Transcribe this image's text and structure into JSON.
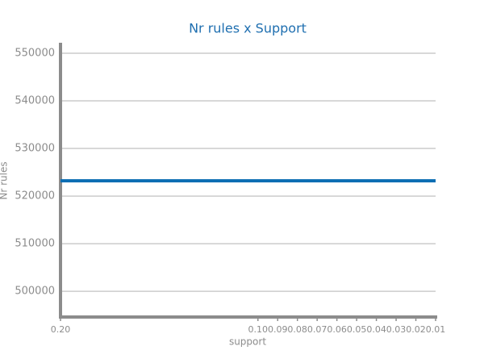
{
  "chart_data": {
    "type": "line",
    "title": "Nr rules x Support",
    "x_label": "support",
    "y_label": "Nr rules",
    "x": [
      0.2,
      0.1,
      0.09,
      0.08,
      0.07,
      0.06,
      0.05,
      0.04,
      0.03,
      0.02,
      0.01
    ],
    "series": [
      {
        "name": "Nr rules",
        "color": "#0a6db3",
        "values": [
          523200,
          523200,
          523200,
          523200,
          523200,
          523200,
          523200,
          523200,
          523200,
          523200,
          523200
        ]
      }
    ],
    "xlim": [
      0.2,
      0.01
    ],
    "xticks": [
      {
        "value": 0.2,
        "label": "0.20"
      },
      {
        "value": 0.1,
        "label": "0.10"
      },
      0.09,
      0.08,
      0.07,
      0.06,
      0.05,
      0.04,
      0.03,
      0.02,
      0.01
    ],
    "ylim": [
      494600,
      552200
    ],
    "yticks": [
      500000,
      510000,
      520000,
      530000,
      540000,
      550000
    ],
    "grid": true
  }
}
